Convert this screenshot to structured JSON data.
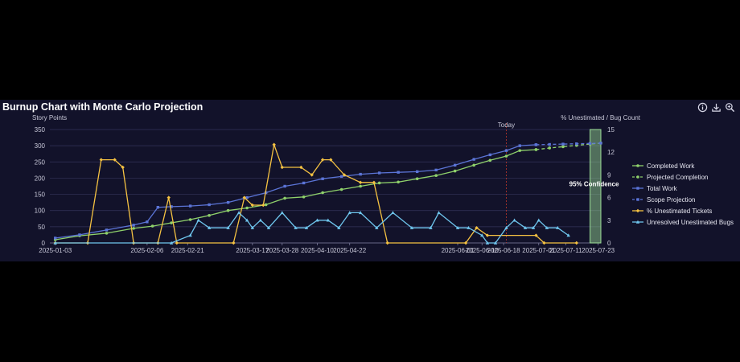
{
  "chart_data": {
    "type": "line",
    "title": "Burnup Chart with Monte Carlo Projection",
    "ylabel": "Story Points",
    "y2label": "% Unestimated / Bug Count",
    "ylim": [
      0,
      350
    ],
    "y2lim": [
      0,
      15
    ],
    "xlim": [
      "2025-01-01",
      "2025-07-24"
    ],
    "x_ticks": [
      "2025-01-03",
      "2025-02-06",
      "2025-02-21",
      "2025-03-17",
      "2025-03-28",
      "2025-04-10",
      "2025-04-22",
      "2025-06-01",
      "2025-06-10",
      "2025-06-18",
      "2025-07-01",
      "2025-07-11",
      "2025-07-23"
    ],
    "y_ticks": [
      0,
      50,
      100,
      150,
      200,
      250,
      300,
      350
    ],
    "y2_ticks": [
      0,
      3,
      6,
      9,
      12,
      15
    ],
    "today": {
      "date": "2025-06-19",
      "label": "Today"
    },
    "confidence": {
      "start": "2025-07-20",
      "end": "2025-07-24",
      "label": "95% Confidence"
    },
    "legend_position": "right",
    "grid": true,
    "series": [
      {
        "name": "Completed Work",
        "color": "#8fd16b",
        "marker": "circle",
        "axis": "left",
        "points": [
          [
            "2025-01-03",
            10
          ],
          [
            "2025-01-12",
            22
          ],
          [
            "2025-01-22",
            30
          ],
          [
            "2025-02-01",
            45
          ],
          [
            "2025-02-08",
            52
          ],
          [
            "2025-02-15",
            62
          ],
          [
            "2025-02-22",
            72
          ],
          [
            "2025-03-01",
            85
          ],
          [
            "2025-03-08",
            100
          ],
          [
            "2025-03-15",
            108
          ],
          [
            "2025-03-22",
            118
          ],
          [
            "2025-03-29",
            138
          ],
          [
            "2025-04-05",
            142
          ],
          [
            "2025-04-12",
            155
          ],
          [
            "2025-04-19",
            165
          ],
          [
            "2025-04-26",
            175
          ],
          [
            "2025-05-03",
            185
          ],
          [
            "2025-05-10",
            188
          ],
          [
            "2025-05-17",
            198
          ],
          [
            "2025-05-24",
            208
          ],
          [
            "2025-05-31",
            222
          ],
          [
            "2025-06-07",
            240
          ],
          [
            "2025-06-13",
            255
          ],
          [
            "2025-06-19",
            268
          ],
          [
            "2025-06-24",
            285
          ],
          [
            "2025-06-30",
            288
          ]
        ]
      },
      {
        "name": "Projected Completion",
        "color": "#8fd16b",
        "marker": "circle",
        "axis": "left",
        "dashed": true,
        "points": [
          [
            "2025-06-30",
            288
          ],
          [
            "2025-07-05",
            293
          ],
          [
            "2025-07-10",
            297
          ],
          [
            "2025-07-15",
            301
          ],
          [
            "2025-07-20",
            305
          ],
          [
            "2025-07-24",
            308
          ]
        ]
      },
      {
        "name": "Total Work",
        "color": "#5b74d6",
        "marker": "square",
        "axis": "left",
        "points": [
          [
            "2025-01-03",
            15
          ],
          [
            "2025-01-12",
            25
          ],
          [
            "2025-01-22",
            40
          ],
          [
            "2025-02-01",
            55
          ],
          [
            "2025-02-06",
            65
          ],
          [
            "2025-02-10",
            110
          ],
          [
            "2025-02-15",
            112
          ],
          [
            "2025-02-22",
            114
          ],
          [
            "2025-03-01",
            118
          ],
          [
            "2025-03-08",
            125
          ],
          [
            "2025-03-15",
            140
          ],
          [
            "2025-03-22",
            155
          ],
          [
            "2025-03-29",
            175
          ],
          [
            "2025-04-05",
            185
          ],
          [
            "2025-04-12",
            198
          ],
          [
            "2025-04-19",
            205
          ],
          [
            "2025-04-26",
            212
          ],
          [
            "2025-05-03",
            216
          ],
          [
            "2025-05-10",
            218
          ],
          [
            "2025-05-17",
            220
          ],
          [
            "2025-05-24",
            225
          ],
          [
            "2025-05-31",
            240
          ],
          [
            "2025-06-07",
            258
          ],
          [
            "2025-06-13",
            272
          ],
          [
            "2025-06-19",
            285
          ],
          [
            "2025-06-24",
            300
          ],
          [
            "2025-06-30",
            303
          ]
        ]
      },
      {
        "name": "Scope Projection",
        "color": "#5b74d6",
        "marker": "square",
        "axis": "left",
        "dashed": true,
        "points": [
          [
            "2025-06-30",
            303
          ],
          [
            "2025-07-05",
            304
          ],
          [
            "2025-07-10",
            305
          ],
          [
            "2025-07-15",
            306
          ],
          [
            "2025-07-20",
            307
          ],
          [
            "2025-07-24",
            308
          ]
        ]
      },
      {
        "name": "% Unestimated Tickets",
        "color": "#f5c242",
        "marker": "diamond",
        "axis": "right",
        "points": [
          [
            "2025-01-03",
            0
          ],
          [
            "2025-01-15",
            0
          ],
          [
            "2025-01-20",
            11
          ],
          [
            "2025-01-25",
            11
          ],
          [
            "2025-01-28",
            10
          ],
          [
            "2025-02-01",
            0
          ],
          [
            "2025-02-10",
            0
          ],
          [
            "2025-02-14",
            6
          ],
          [
            "2025-02-17",
            0
          ],
          [
            "2025-03-10",
            0
          ],
          [
            "2025-03-14",
            6
          ],
          [
            "2025-03-17",
            5
          ],
          [
            "2025-03-21",
            5
          ],
          [
            "2025-03-25",
            13
          ],
          [
            "2025-03-28",
            10
          ],
          [
            "2025-04-04",
            10
          ],
          [
            "2025-04-08",
            9
          ],
          [
            "2025-04-12",
            11
          ],
          [
            "2025-04-15",
            11
          ],
          [
            "2025-04-20",
            9
          ],
          [
            "2025-04-26",
            8
          ],
          [
            "2025-05-01",
            8
          ],
          [
            "2025-05-06",
            0
          ],
          [
            "2025-06-04",
            0
          ],
          [
            "2025-06-08",
            2
          ],
          [
            "2025-06-12",
            1
          ],
          [
            "2025-06-30",
            1
          ],
          [
            "2025-07-03",
            0
          ],
          [
            "2025-07-15",
            0
          ]
        ]
      },
      {
        "name": "Unresolved Unestimated Bugs",
        "color": "#6fc6ee",
        "marker": "triangle",
        "axis": "right",
        "points": [
          [
            "2025-01-03",
            0
          ],
          [
            "2025-02-15",
            0
          ],
          [
            "2025-02-22",
            1
          ],
          [
            "2025-02-25",
            3
          ],
          [
            "2025-03-01",
            2
          ],
          [
            "2025-03-08",
            2
          ],
          [
            "2025-03-12",
            4
          ],
          [
            "2025-03-15",
            3
          ],
          [
            "2025-03-17",
            2
          ],
          [
            "2025-03-20",
            3
          ],
          [
            "2025-03-23",
            2
          ],
          [
            "2025-03-28",
            4
          ],
          [
            "2025-04-02",
            2
          ],
          [
            "2025-04-06",
            2
          ],
          [
            "2025-04-10",
            3
          ],
          [
            "2025-04-14",
            3
          ],
          [
            "2025-04-18",
            2
          ],
          [
            "2025-04-22",
            4
          ],
          [
            "2025-04-26",
            4
          ],
          [
            "2025-05-02",
            2
          ],
          [
            "2025-05-08",
            4
          ],
          [
            "2025-05-15",
            2
          ],
          [
            "2025-05-22",
            2
          ],
          [
            "2025-05-25",
            4
          ],
          [
            "2025-06-01",
            2
          ],
          [
            "2025-06-05",
            2
          ],
          [
            "2025-06-10",
            1
          ],
          [
            "2025-06-12",
            0
          ],
          [
            "2025-06-15",
            0
          ],
          [
            "2025-06-19",
            2
          ],
          [
            "2025-06-22",
            3
          ],
          [
            "2025-06-26",
            2
          ],
          [
            "2025-06-29",
            2
          ],
          [
            "2025-07-01",
            3
          ],
          [
            "2025-07-04",
            2
          ],
          [
            "2025-07-08",
            2
          ],
          [
            "2025-07-12",
            1
          ]
        ]
      }
    ]
  },
  "toolbar": {
    "info_icon": "info-icon",
    "download_icon": "download-icon",
    "zoom_icon": "zoom-icon"
  }
}
